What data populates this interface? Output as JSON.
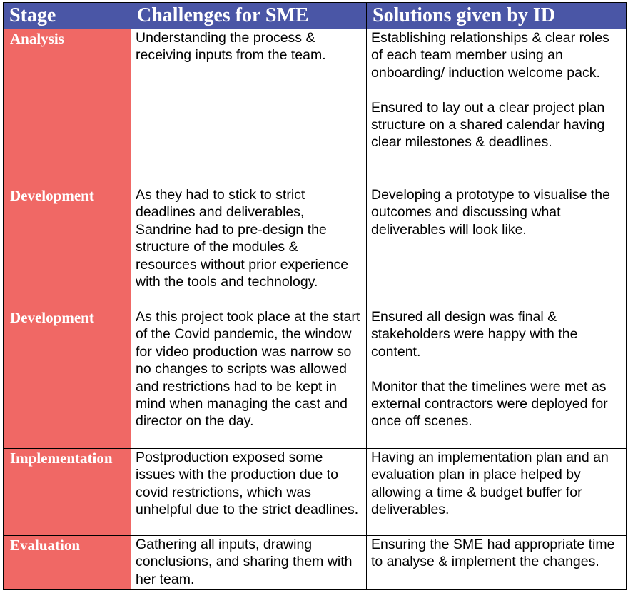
{
  "headers": [
    "Stage",
    "Challenges for SME",
    "Solutions given by ID"
  ],
  "rows": [
    {
      "stage": "Analysis",
      "challenge": [
        "Understanding the process & receiving inputs from the team."
      ],
      "solution": [
        "Establishing relationships & clear roles of each team member using an onboarding/ induction welcome pack.",
        "Ensured to lay out a clear project plan structure on a shared calendar having clear milestones & deadlines."
      ]
    },
    {
      "stage": "Development",
      "challenge": [
        "As they had to stick to strict deadlines and deliverables, Sandrine had to pre-design the structure of the modules & resources without prior experience with the tools and technology."
      ],
      "solution": [
        "Developing a prototype to visualise the outcomes and discussing what deliverables will look like."
      ]
    },
    {
      "stage": "Development",
      "challenge": [
        "As this project took place at the start of the Covid pandemic, the window for video production was narrow so no changes to scripts was allowed and restrictions had to be kept in mind when managing the cast and director on the day."
      ],
      "solution": [
        "Ensured all design was final & stakeholders were happy with the content.",
        "Monitor that the timelines were met as external contractors were deployed for once off scenes."
      ]
    },
    {
      "stage": "Implementation",
      "challenge": [
        "Postproduction exposed some issues with the production due to covid restrictions, which was unhelpful due to the strict deadlines."
      ],
      "solution": [
        "Having an implementation plan and an evaluation plan in place helped by allowing a time & budget buffer for deliverables."
      ]
    },
    {
      "stage": "Evaluation",
      "challenge": [
        "Gathering all inputs, drawing conclusions, and sharing them with her team."
      ],
      "solution": [
        "Ensuring the SME had appropriate time to analyse & implement the changes."
      ]
    }
  ],
  "colors": {
    "header_bg": "#4A56A6",
    "stage_bg": "#F06865"
  }
}
